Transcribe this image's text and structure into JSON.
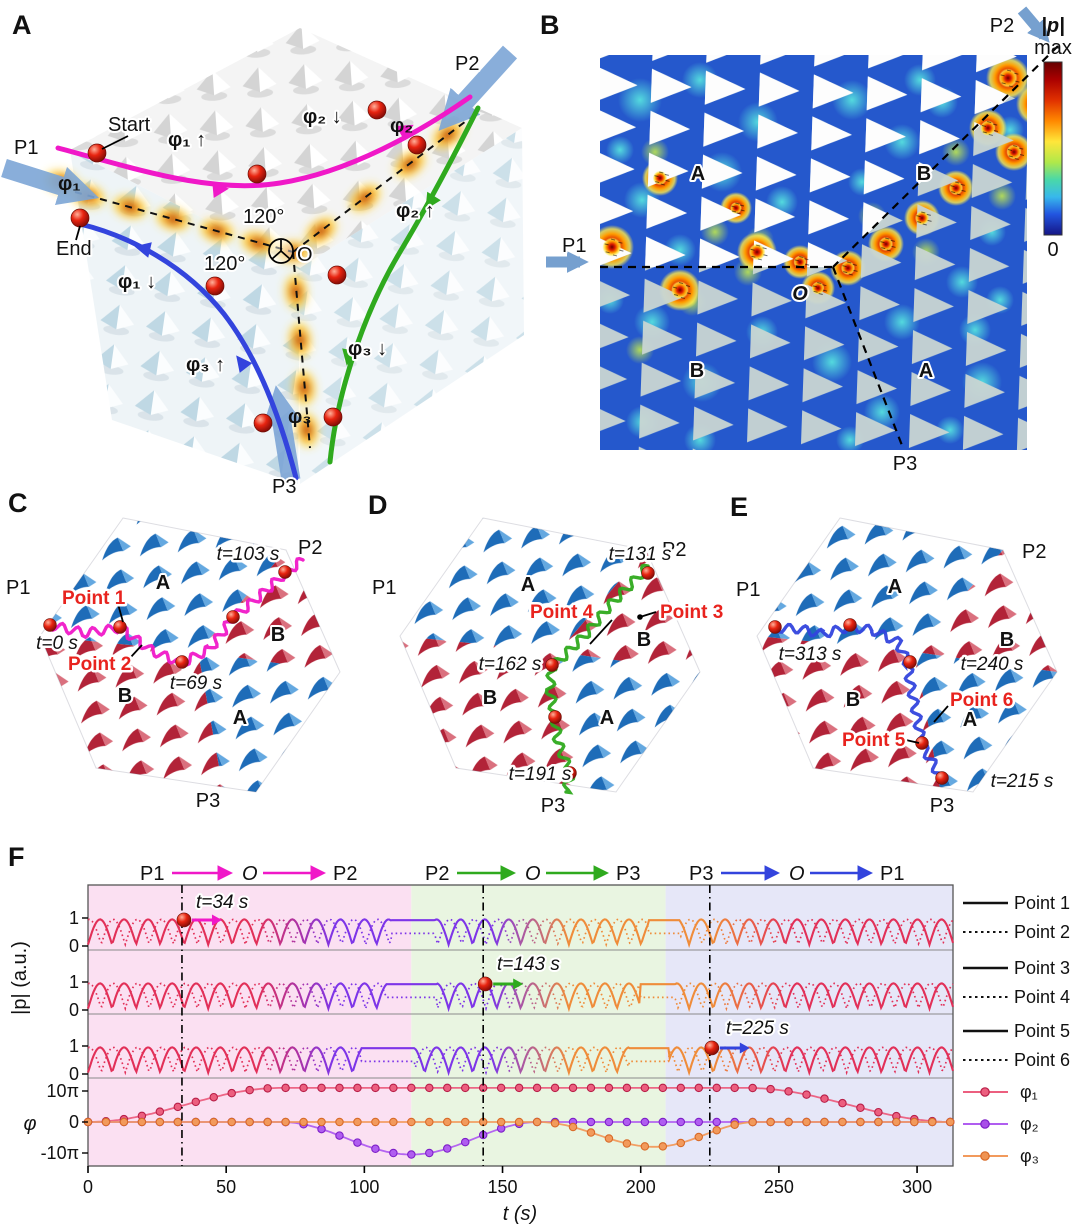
{
  "colors": {
    "path_p1_o_p2": "#f018c8",
    "path_p2_o_p3": "#2faa1e",
    "path_p3_o_p1": "#3344dd",
    "phi1": "#ec5f7f",
    "phi2": "#a94fe8",
    "phi3": "#ef9352",
    "sphere_red": "#e02410",
    "pump_arrow_blue": "#7da6d6",
    "region_pink": "#fbe0f2",
    "region_green": "#e9f5e1",
    "region_lavender": "#e6e7f8"
  },
  "panelA": {
    "tag": "A",
    "labels": {
      "p1": "P1",
      "p2": "P2",
      "p3": "P3",
      "start": "Start",
      "end": "End",
      "phi1_up": "φ₁ ↑",
      "phi1_down": "φ₁ ↓",
      "phi1_arrow": "φ₁",
      "phi2_down": "φ₂ ↓",
      "phi2_up": "φ₂ ↑",
      "phi2_arrow": "φ₂",
      "phi3_up": "φ₃ ↑",
      "phi3_down": "φ₃ ↓",
      "phi3_arrow": "φ₃",
      "angle1": "120°",
      "angle2": "120°",
      "origin": "O"
    }
  },
  "panelB": {
    "tag": "B",
    "labels": {
      "p1": "P1",
      "p2": "P2",
      "p3": "P3",
      "region_a_top": "A",
      "region_b_right": "B",
      "region_b_left": "B",
      "region_a_bottom": "A",
      "origin": "O"
    },
    "colorbar": {
      "title": "|p|",
      "max": "max",
      "min": "0"
    }
  },
  "panelC": {
    "tag": "C",
    "labels": {
      "p1": "P1",
      "p2": "P2",
      "p3": "P3",
      "region_a_top": "A",
      "region_b_right": "B",
      "region_b_left": "B",
      "region_a_bottom": "A",
      "point1": "Point 1",
      "point2": "Point 2",
      "t_start": "t=0 s",
      "t_mid": "t=69 s",
      "t_end": "t=103 s"
    }
  },
  "panelD": {
    "tag": "D",
    "labels": {
      "p1": "P1",
      "p2": "P2",
      "p3": "P3",
      "region_a_top": "A",
      "region_b_right": "B",
      "region_b_left": "B",
      "region_a_bottom": "A",
      "point3": "Point 3",
      "point4": "Point 4",
      "t_a": "t=131 s",
      "t_b": "t=162 s",
      "t_c": "t=191 s"
    }
  },
  "panelE": {
    "tag": "E",
    "labels": {
      "p1": "P1",
      "p2": "P2",
      "p3": "P3",
      "region_a_top": "A",
      "region_b_right": "B",
      "region_b_left": "B",
      "region_a_bottom": "A",
      "point5": "Point 5",
      "point6": "Point 6",
      "t_a": "t=313 s",
      "t_b": "t=240 s",
      "t_c": "t=215 s"
    }
  },
  "panelF": {
    "tag": "F",
    "header": [
      {
        "from": "P1",
        "via": "O",
        "to": "P2"
      },
      {
        "from": "P2",
        "via": "O",
        "to": "P3"
      },
      {
        "from": "P3",
        "via": "O",
        "to": "P1"
      }
    ],
    "legend_points": [
      "Point 1",
      "Point 2",
      "Point 3",
      "Point 4",
      "Point 5",
      "Point 6"
    ],
    "legend_phases": [
      "φ₁",
      "φ₂",
      "φ₃"
    ],
    "annotations": [
      "t=34 s",
      "t=143 s",
      "t=225 s"
    ],
    "ylabel_p": "|p| (a.u.)",
    "ylabel_phi": "φ",
    "xlabel": "t (s)",
    "p_tick_one": "1",
    "p_tick_zero": "0",
    "phi_ticks": [
      "10π",
      "0",
      "-10π"
    ]
  },
  "chart_data": {
    "type": "line",
    "xlabel": "t (s)",
    "x_max": 313,
    "xticks": [
      0,
      50,
      100,
      150,
      200,
      250,
      300
    ],
    "regions": [
      {
        "x": [
          0,
          117
        ],
        "color": "#fbe0f2"
      },
      {
        "x": [
          117,
          209
        ],
        "color": "#e9f5e1"
      },
      {
        "x": [
          209,
          313
        ],
        "color": "#e6e7f8"
      }
    ],
    "event_times_s": [
      34,
      143,
      225
    ],
    "p_rows": [
      {
        "solid": "Point 1",
        "dotted": "Point 2",
        "arc_period_s": 8.7,
        "flat_intervals": [
          [
            110,
            125
          ],
          [
            203,
            214
          ]
        ],
        "event_s": 34
      },
      {
        "solid": "Point 3",
        "dotted": "Point 4",
        "arc_period_s": 8.7,
        "flat_intervals": [
          [
            108,
            126
          ],
          [
            200,
            212
          ]
        ],
        "event_s": 143
      },
      {
        "solid": "Point 5",
        "dotted": "Point 6",
        "arc_period_s": 8.7,
        "flat_intervals": [
          [
            99,
            118
          ],
          [
            196,
            210
          ]
        ],
        "event_s": 225
      }
    ],
    "p_yticks": [
      0,
      1
    ],
    "p_color_stops": [
      {
        "t": 0,
        "color": "#e23058"
      },
      {
        "t": 75,
        "color": "#7d35e8"
      },
      {
        "t": 160,
        "color": "#ef8c3a"
      },
      {
        "t": 240,
        "color": "#e23058"
      }
    ],
    "phase_series": [
      {
        "name": "φ₁",
        "color": "#ec5f7f",
        "marker_stroke": "#b81f48",
        "keyframes_pi": [
          [
            0,
            0
          ],
          [
            70,
            11
          ],
          [
            238,
            11
          ],
          [
            313,
            0
          ]
        ]
      },
      {
        "name": "φ₂",
        "color": "#b05df0",
        "marker_stroke": "#7d1fc8",
        "keyframes_pi": [
          [
            0,
            0
          ],
          [
            70,
            0
          ],
          [
            117,
            -10.5
          ],
          [
            163,
            0
          ],
          [
            313,
            0
          ]
        ]
      },
      {
        "name": "φ₃",
        "color": "#f29a5c",
        "marker_stroke": "#d86a28",
        "keyframes_pi": [
          [
            0,
            0
          ],
          [
            163,
            0
          ],
          [
            205,
            -8
          ],
          [
            242,
            0
          ],
          [
            313,
            0
          ]
        ]
      }
    ],
    "marker_interval_s": 6.5,
    "phi_yticks_pi": [
      10,
      0,
      -10
    ]
  }
}
